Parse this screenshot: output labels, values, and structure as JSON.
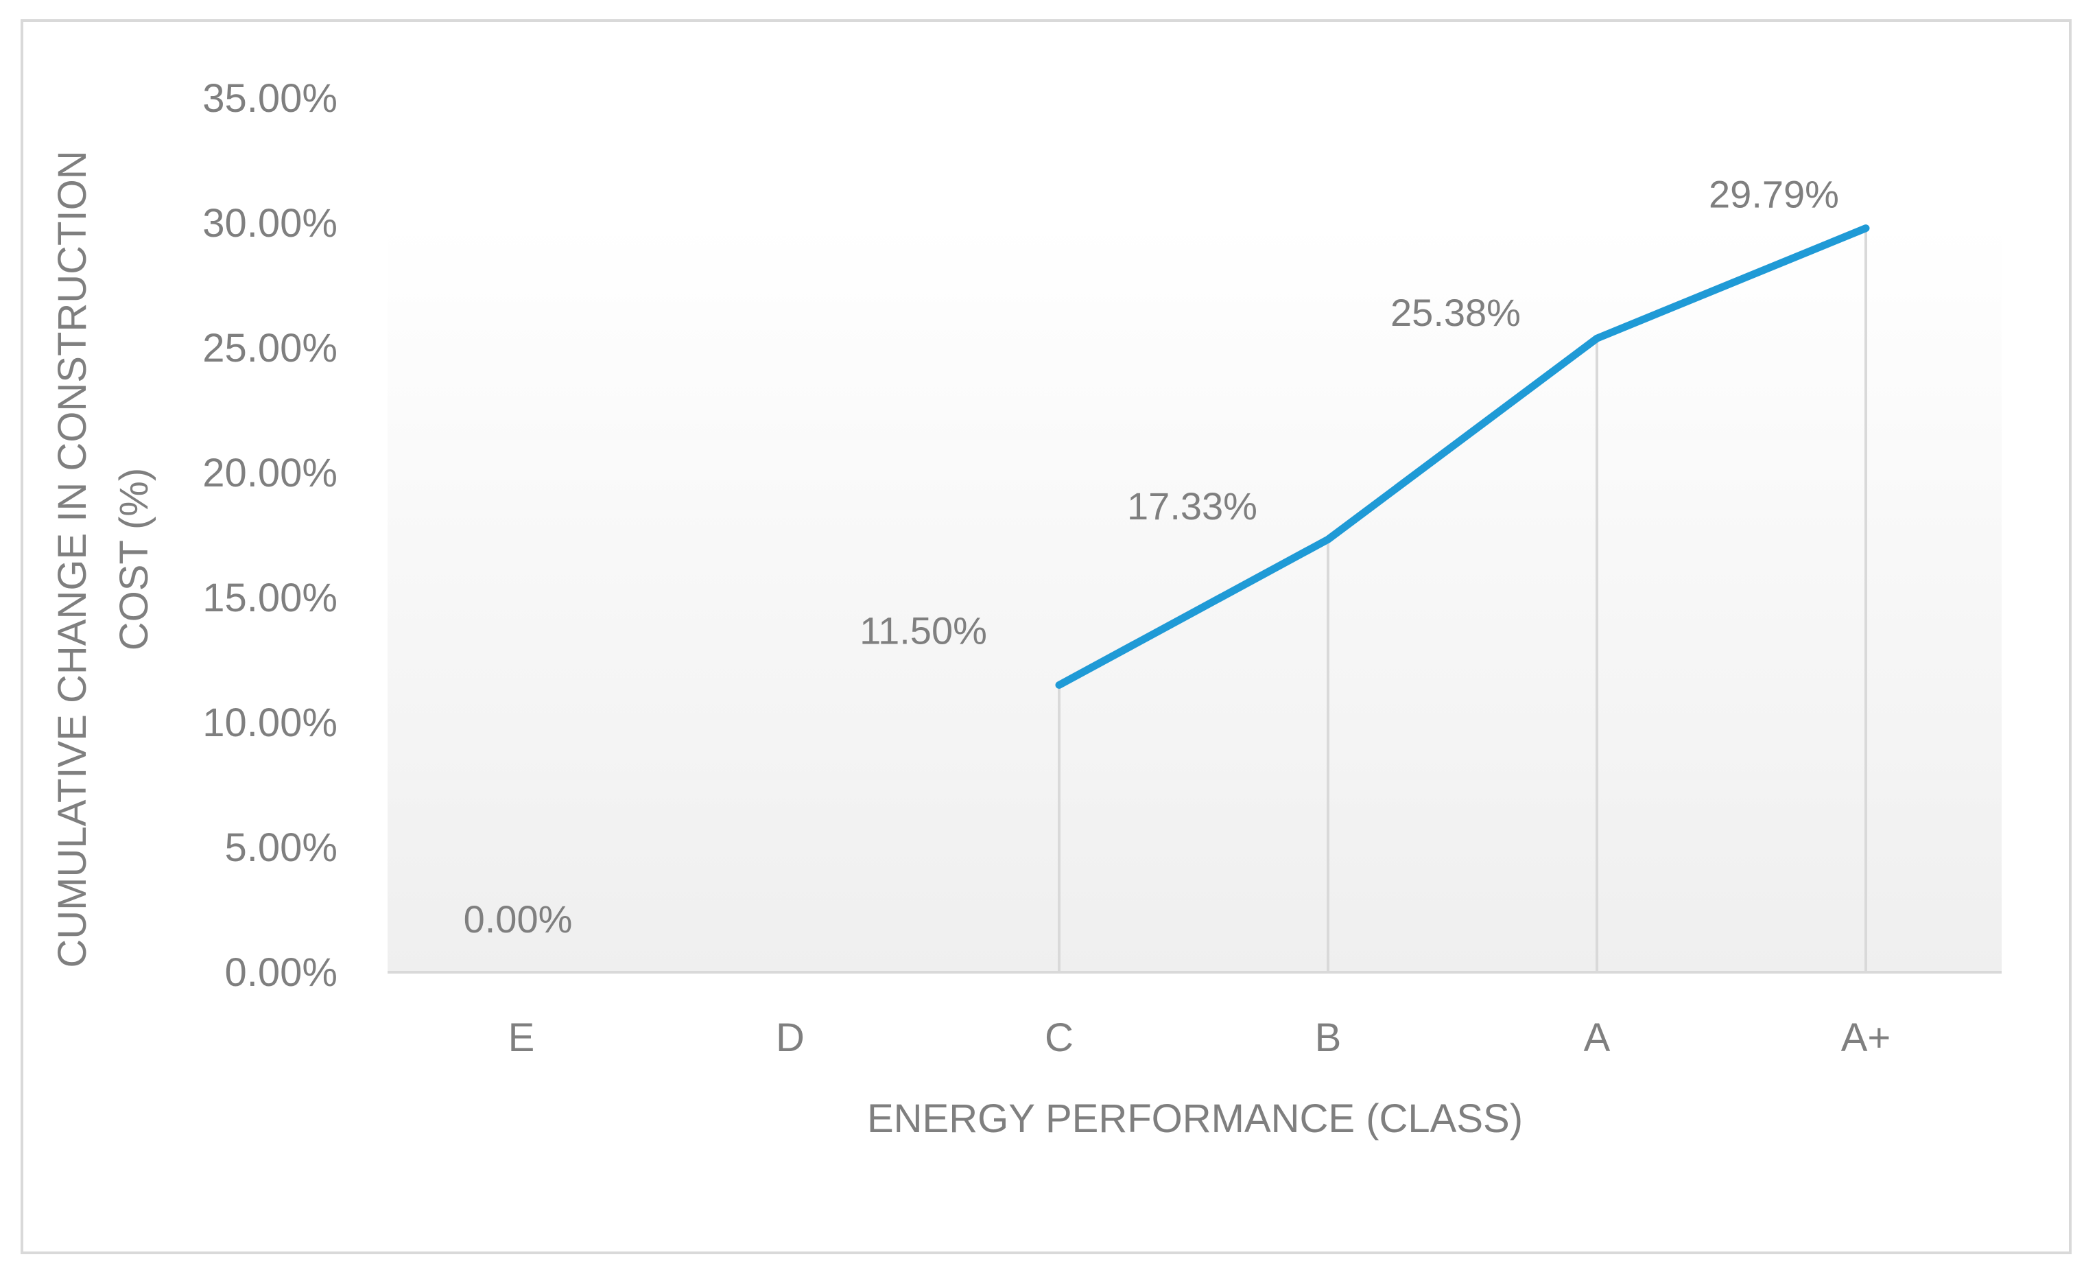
{
  "chart_data": {
    "type": "line",
    "title": "",
    "xlabel": "ENERGY PERFORMANCE (CLASS)",
    "ylabel_lines": [
      "CUMULATIVE CHANGE IN CONSTRUCTION",
      "COST (%)"
    ],
    "categories": [
      "E",
      "D",
      "C",
      "B",
      "A",
      "A+"
    ],
    "series": [
      {
        "values": [
          0.0,
          null,
          11.5,
          17.33,
          25.38,
          29.79
        ]
      }
    ],
    "data_labels": [
      "0.00%",
      "",
      "11.50%",
      "17.33%",
      "25.38%",
      "29.79%"
    ],
    "ylim": [
      0,
      35
    ],
    "yticks": [
      0,
      5,
      10,
      15,
      20,
      25,
      30,
      35
    ],
    "ytick_labels": [
      "0.00%",
      "5.00%",
      "10.00%",
      "15.00%",
      "20.00%",
      "25.00%",
      "30.00%",
      "35.00%"
    ],
    "grid": false,
    "drop_lines": true,
    "legend": "none",
    "colors": {
      "line": "#1f9ad6",
      "text": "#7f7f7f",
      "axis": "#d9d9d9",
      "drop_line": "#d9d9d9",
      "plot_bg_top": "#ffffff",
      "plot_bg_bottom": "#efefef"
    }
  }
}
